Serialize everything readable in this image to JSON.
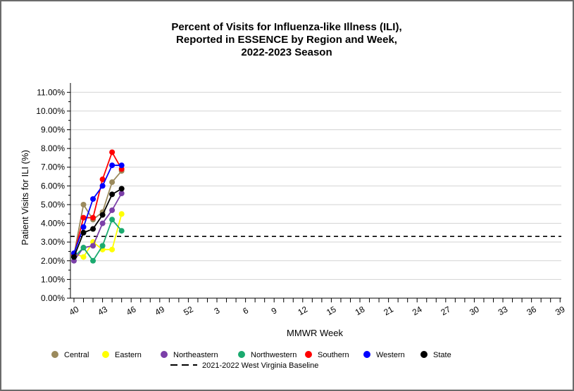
{
  "chart_data": {
    "type": "line",
    "title_lines": [
      "Percent of Visits for Influenza-like Illness (ILI),",
      "Reported in ESSENCE by Region and Week,",
      "2022-2023 Season"
    ],
    "xlabel": "MMWR Week",
    "ylabel": "Patient Visits for ILI (%)",
    "ylim": [
      0,
      11.5
    ],
    "yticks": [
      0,
      1,
      2,
      3,
      4,
      5,
      6,
      7,
      8,
      9,
      10,
      11
    ],
    "ytick_labels": [
      "0.00%",
      "1.00%",
      "2.00%",
      "3.00%",
      "4.00%",
      "5.00%",
      "6.00%",
      "7.00%",
      "8.00%",
      "9.00%",
      "10.00%",
      "11.00%"
    ],
    "x_weeks": [
      40,
      41,
      42,
      43,
      44,
      45,
      46,
      47,
      48,
      49,
      50,
      51,
      52,
      1,
      2,
      3,
      4,
      5,
      6,
      7,
      8,
      9,
      10,
      11,
      12,
      13,
      14,
      15,
      16,
      17,
      18,
      19,
      20,
      21,
      22,
      23,
      24,
      25,
      26,
      27,
      28,
      29,
      30,
      31,
      32,
      33,
      34,
      35,
      36,
      37,
      38,
      39
    ],
    "x_labeled_weeks": [
      40,
      43,
      46,
      49,
      52,
      3,
      6,
      9,
      12,
      15,
      18,
      21,
      24,
      27,
      30,
      33,
      36,
      39
    ],
    "grid": "horizontal",
    "legend_position": "bottom",
    "series": [
      {
        "name": "Central",
        "color": "#9b8a5c",
        "values": [
          2.3,
          5.0,
          4.2,
          4.6,
          6.2,
          6.8
        ]
      },
      {
        "name": "Eastern",
        "color": "#ffff00",
        "values": [
          2.4,
          2.2,
          3.0,
          2.6,
          2.6,
          4.5
        ]
      },
      {
        "name": "Northeastern",
        "color": "#7b3fa8",
        "values": [
          2.0,
          2.7,
          2.8,
          4.0,
          4.7,
          5.6
        ]
      },
      {
        "name": "Northwestern",
        "color": "#1aaa6f",
        "values": [
          2.2,
          2.7,
          2.0,
          2.8,
          4.2,
          3.6
        ]
      },
      {
        "name": "Southern",
        "color": "#ff0000",
        "values": [
          2.3,
          4.3,
          4.3,
          6.35,
          7.8,
          6.9
        ]
      },
      {
        "name": "Western",
        "color": "#0000ff",
        "values": [
          2.4,
          3.8,
          5.3,
          6.0,
          7.1,
          7.1
        ]
      },
      {
        "name": "State",
        "color": "#000000",
        "values": [
          2.2,
          3.5,
          3.7,
          4.45,
          5.55,
          5.85
        ]
      }
    ],
    "baseline": {
      "name": "2021-2022 West Virginia Baseline",
      "value": 3.3,
      "color": "#000000"
    }
  }
}
